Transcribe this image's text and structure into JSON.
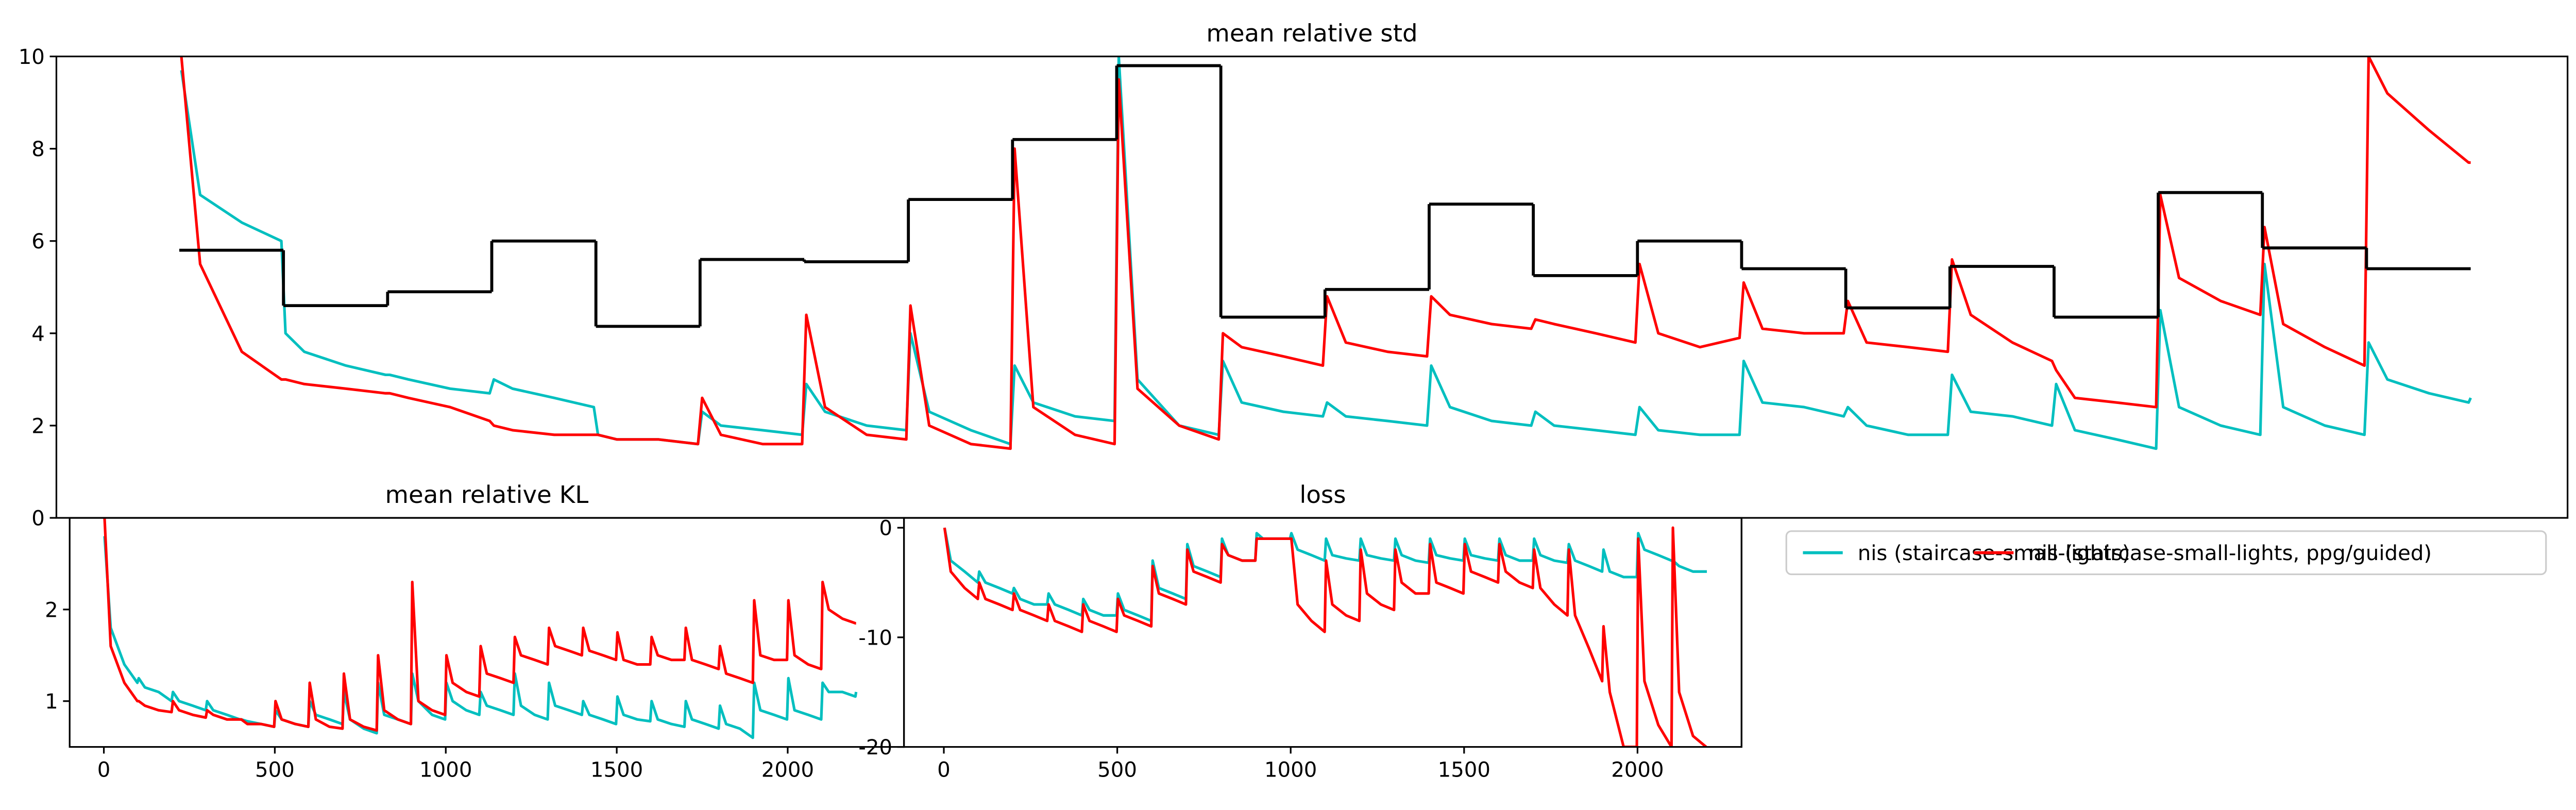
{
  "chart_data": [
    {
      "type": "line",
      "title": "mean relative std",
      "legend": "upper left",
      "xlim": [
        -118,
        2293
      ],
      "ylim": [
        0,
        10
      ],
      "yticks": [
        0,
        2,
        4,
        6,
        8,
        10
      ],
      "x": [
        2,
        20,
        60,
        98,
        102,
        120,
        160,
        198,
        202,
        220,
        260,
        298,
        302,
        320,
        360,
        398,
        402,
        420,
        460,
        498,
        502,
        520,
        560,
        598,
        602,
        620,
        660,
        698,
        702,
        720,
        760,
        798,
        802,
        820,
        860,
        898,
        902,
        920,
        960,
        998,
        1002,
        1020,
        1060,
        1098,
        1102,
        1120,
        1160,
        1198,
        1202,
        1220,
        1260,
        1298,
        1302,
        1320,
        1360,
        1398,
        1402,
        1420,
        1460,
        1498,
        1502,
        1520,
        1560,
        1598,
        1602,
        1620,
        1660,
        1698,
        1702,
        1720,
        1760,
        1798,
        1802,
        1820,
        1860,
        1898,
        1902,
        1920,
        1960,
        1998,
        2002,
        2020,
        2060,
        2098,
        2102,
        2120,
        2160,
        2198,
        2200
      ],
      "series": [
        {
          "name": "nis (staircase-small-lights)",
          "color": "#00bfbf",
          "values": [
            9.7,
            7.0,
            6.4,
            6.0,
            4.0,
            3.6,
            3.3,
            3.1,
            3.1,
            3.0,
            2.8,
            2.7,
            3.0,
            2.8,
            2.6,
            2.4,
            1.8,
            1.7,
            1.7,
            1.6,
            2.3,
            2.0,
            1.9,
            1.8,
            2.9,
            2.3,
            2.0,
            1.9,
            4.0,
            2.3,
            1.9,
            1.6,
            3.3,
            2.5,
            2.2,
            2.1,
            10,
            3.0,
            2.0,
            1.8,
            3.4,
            2.5,
            2.3,
            2.2,
            2.5,
            2.2,
            2.1,
            2.0,
            3.3,
            2.4,
            2.1,
            2.0,
            2.3,
            2.0,
            1.9,
            1.8,
            2.4,
            1.9,
            1.8,
            1.8,
            3.4,
            2.5,
            2.4,
            2.2,
            2.4,
            2.0,
            1.8,
            1.8,
            3.1,
            2.3,
            2.2,
            2.0,
            2.9,
            1.9,
            1.7,
            1.5,
            4.5,
            2.4,
            2.0,
            1.8,
            5.5,
            2.4,
            2.0,
            1.8,
            3.8,
            3.0,
            2.7,
            2.5,
            2.6
          ]
        },
        {
          "name": "nis (staircase-small-lights, ppg/guided)",
          "color": "#ff0000",
          "values": [
            10,
            5.5,
            3.6,
            3.0,
            3.0,
            2.9,
            2.8,
            2.7,
            2.7,
            2.6,
            2.4,
            2.1,
            2.0,
            1.9,
            1.8,
            1.8,
            1.8,
            1.7,
            1.7,
            1.6,
            2.6,
            1.8,
            1.6,
            1.6,
            4.4,
            2.4,
            1.8,
            1.7,
            4.6,
            2.0,
            1.6,
            1.5,
            8.0,
            2.4,
            1.8,
            1.6,
            9.5,
            2.8,
            2.0,
            1.7,
            4.0,
            3.7,
            3.5,
            3.3,
            4.8,
            3.8,
            3.6,
            3.5,
            4.8,
            4.4,
            4.2,
            4.1,
            4.3,
            4.2,
            4.0,
            3.8,
            5.5,
            4.0,
            3.7,
            3.9,
            5.1,
            4.1,
            4.0,
            4.0,
            4.7,
            3.8,
            3.7,
            3.6,
            5.6,
            4.4,
            3.8,
            3.4,
            3.2,
            2.6,
            2.5,
            2.4,
            7.0,
            5.2,
            4.7,
            4.4,
            6.3,
            4.2,
            3.7,
            3.3,
            10,
            9.2,
            8.4,
            7.7,
            7.7
          ]
        },
        {
          "color": "#000000",
          "drawstyle": "steps-post",
          "x": [
            0,
            100,
            200,
            300,
            400,
            500,
            600,
            700,
            800,
            900,
            1000,
            1100,
            1200,
            1300,
            1400,
            1500,
            1600,
            1700,
            1800,
            1900,
            2000,
            2100,
            2200
          ],
          "values": [
            5.8,
            4.6,
            4.9,
            6.0,
            4.15,
            5.6,
            5.55,
            6.9,
            8.2,
            9.8,
            4.35,
            4.95,
            6.8,
            5.25,
            6.0,
            5.4,
            4.55,
            5.45,
            4.35,
            7.05,
            5.85,
            5.4,
            5.4
          ]
        }
      ]
    },
    {
      "type": "line",
      "title": "mean relative KL",
      "xlim": [
        -100,
        2340
      ],
      "ylim": [
        0.5,
        3
      ],
      "xticks": [
        0,
        500,
        1000,
        1500,
        2000
      ],
      "yticks": [
        1,
        2
      ],
      "x": [
        2,
        20,
        60,
        98,
        102,
        120,
        160,
        198,
        202,
        220,
        260,
        298,
        302,
        320,
        360,
        398,
        402,
        420,
        460,
        498,
        502,
        520,
        560,
        598,
        602,
        620,
        660,
        698,
        702,
        720,
        760,
        798,
        802,
        820,
        860,
        898,
        902,
        920,
        960,
        998,
        1002,
        1020,
        1060,
        1098,
        1102,
        1120,
        1160,
        1198,
        1202,
        1220,
        1260,
        1298,
        1302,
        1320,
        1360,
        1398,
        1402,
        1420,
        1460,
        1498,
        1502,
        1520,
        1560,
        1598,
        1602,
        1620,
        1660,
        1698,
        1702,
        1720,
        1760,
        1798,
        1802,
        1820,
        1860,
        1898,
        1902,
        1920,
        1960,
        1998,
        2002,
        2020,
        2060,
        2098,
        2102,
        2120,
        2160,
        2198,
        2200
      ],
      "series": [
        {
          "color": "#00bfbf",
          "values": [
            2.8,
            1.8,
            1.4,
            1.2,
            1.25,
            1.15,
            1.1,
            1.0,
            1.1,
            1.0,
            0.95,
            0.9,
            1.0,
            0.9,
            0.85,
            0.8,
            0.8,
            0.78,
            0.75,
            0.72,
            0.9,
            0.8,
            0.75,
            0.72,
            1.0,
            0.85,
            0.8,
            0.75,
            1.1,
            0.8,
            0.7,
            0.65,
            1.2,
            0.85,
            0.8,
            0.75,
            1.3,
            1.0,
            0.85,
            0.8,
            1.2,
            1.0,
            0.9,
            0.85,
            1.1,
            0.95,
            0.9,
            0.85,
            1.3,
            0.95,
            0.85,
            0.8,
            1.2,
            0.95,
            0.9,
            0.85,
            1.0,
            0.85,
            0.8,
            0.75,
            1.05,
            0.85,
            0.8,
            0.78,
            1.0,
            0.8,
            0.75,
            0.72,
            1.0,
            0.8,
            0.75,
            0.7,
            0.95,
            0.75,
            0.7,
            0.6,
            1.2,
            0.9,
            0.85,
            0.8,
            1.25,
            0.9,
            0.85,
            0.8,
            1.2,
            1.1,
            1.1,
            1.05,
            1.1
          ]
        },
        {
          "color": "#ff0000",
          "values": [
            3.0,
            1.6,
            1.2,
            1.0,
            1.0,
            0.95,
            0.9,
            0.88,
            1.0,
            0.9,
            0.85,
            0.82,
            0.9,
            0.85,
            0.8,
            0.8,
            0.8,
            0.75,
            0.75,
            0.72,
            1.0,
            0.8,
            0.75,
            0.72,
            1.2,
            0.8,
            0.72,
            0.7,
            1.3,
            0.8,
            0.72,
            0.68,
            1.5,
            0.9,
            0.8,
            0.75,
            2.3,
            1.0,
            0.9,
            0.85,
            1.5,
            1.2,
            1.1,
            1.05,
            1.6,
            1.3,
            1.25,
            1.2,
            1.7,
            1.5,
            1.45,
            1.4,
            1.8,
            1.6,
            1.55,
            1.5,
            1.8,
            1.55,
            1.5,
            1.45,
            1.75,
            1.45,
            1.4,
            1.4,
            1.7,
            1.5,
            1.45,
            1.45,
            1.8,
            1.45,
            1.4,
            1.35,
            1.6,
            1.3,
            1.25,
            1.2,
            2.1,
            1.5,
            1.45,
            1.45,
            2.1,
            1.5,
            1.4,
            1.35,
            2.3,
            2.0,
            1.9,
            1.85,
            1.85
          ]
        }
      ]
    },
    {
      "type": "line",
      "title": "loss",
      "xlim": [
        -115,
        2300
      ],
      "ylim": [
        -20,
        0.9
      ],
      "xticks": [
        0,
        500,
        1000,
        1500,
        2000
      ],
      "yticks": [
        0,
        -10,
        -20
      ],
      "x": [
        2,
        20,
        60,
        98,
        102,
        120,
        160,
        198,
        202,
        220,
        260,
        298,
        302,
        320,
        360,
        398,
        402,
        420,
        460,
        498,
        502,
        520,
        560,
        598,
        602,
        620,
        660,
        698,
        702,
        720,
        760,
        798,
        802,
        820,
        860,
        898,
        902,
        920,
        960,
        998,
        1002,
        1020,
        1060,
        1098,
        1102,
        1120,
        1160,
        1198,
        1202,
        1220,
        1260,
        1298,
        1302,
        1320,
        1360,
        1398,
        1402,
        1420,
        1460,
        1498,
        1502,
        1520,
        1560,
        1598,
        1602,
        1620,
        1660,
        1698,
        1702,
        1720,
        1760,
        1798,
        1802,
        1820,
        1860,
        1898,
        1902,
        1920,
        1960,
        1998,
        2002,
        2020,
        2060,
        2098,
        2102,
        2120,
        2160,
        2198,
        2200
      ],
      "series": [
        {
          "color": "#00bfbf",
          "values": [
            0,
            -3,
            -4,
            -5,
            -4,
            -5,
            -5.5,
            -6,
            -5.5,
            -6.5,
            -7,
            -7,
            -6,
            -7,
            -7.5,
            -8,
            -6.5,
            -7.5,
            -8,
            -8,
            -6,
            -7.5,
            -8,
            -8.5,
            -3,
            -5.5,
            -6,
            -6.5,
            -1.5,
            -3.5,
            -4,
            -4.5,
            -1,
            -2.5,
            -3,
            -3,
            -0.5,
            -1,
            -1,
            -1,
            -0.5,
            -2,
            -2.5,
            -3,
            -1,
            -2.5,
            -2.8,
            -3,
            -1,
            -2.5,
            -2.8,
            -3,
            -1,
            -2.5,
            -3,
            -3.2,
            -1,
            -2.5,
            -2.8,
            -3,
            -1,
            -2.5,
            -2.8,
            -3,
            -1,
            -2.5,
            -3,
            -3,
            -1,
            -2.5,
            -3,
            -3.2,
            -1.5,
            -3,
            -3.5,
            -4,
            -2,
            -4,
            -4.5,
            -4.5,
            -0.5,
            -2,
            -2.5,
            -3,
            -3,
            -3.5,
            -4,
            -4,
            -4
          ]
        },
        {
          "color": "#ff0000",
          "values": [
            0,
            -4,
            -5.5,
            -6.5,
            -5,
            -6.5,
            -7,
            -7.5,
            -6,
            -7.5,
            -8,
            -8.5,
            -7,
            -8.5,
            -9,
            -9.5,
            -7,
            -8.5,
            -9,
            -9.5,
            -6.5,
            -8,
            -8.5,
            -9,
            -3.5,
            -6,
            -6.5,
            -7,
            -2,
            -4,
            -4.5,
            -5,
            -1.5,
            -2.5,
            -3,
            -3,
            -1,
            -1,
            -1,
            -1,
            -1,
            -7,
            -8.5,
            -9.5,
            -3,
            -7,
            -8,
            -8.5,
            -2,
            -6,
            -7,
            -7.5,
            -2,
            -5,
            -6,
            -6,
            -1.5,
            -5,
            -5.5,
            -6,
            -1.5,
            -4,
            -4.5,
            -5,
            -1.5,
            -4,
            -5,
            -5.5,
            -2,
            -5.5,
            -7,
            -8,
            -2,
            -8,
            -11,
            -14,
            -9,
            -15,
            -20,
            -20,
            -1,
            -14,
            -18,
            -20,
            0,
            -15,
            -19,
            -20,
            -20
          ]
        }
      ]
    }
  ]
}
